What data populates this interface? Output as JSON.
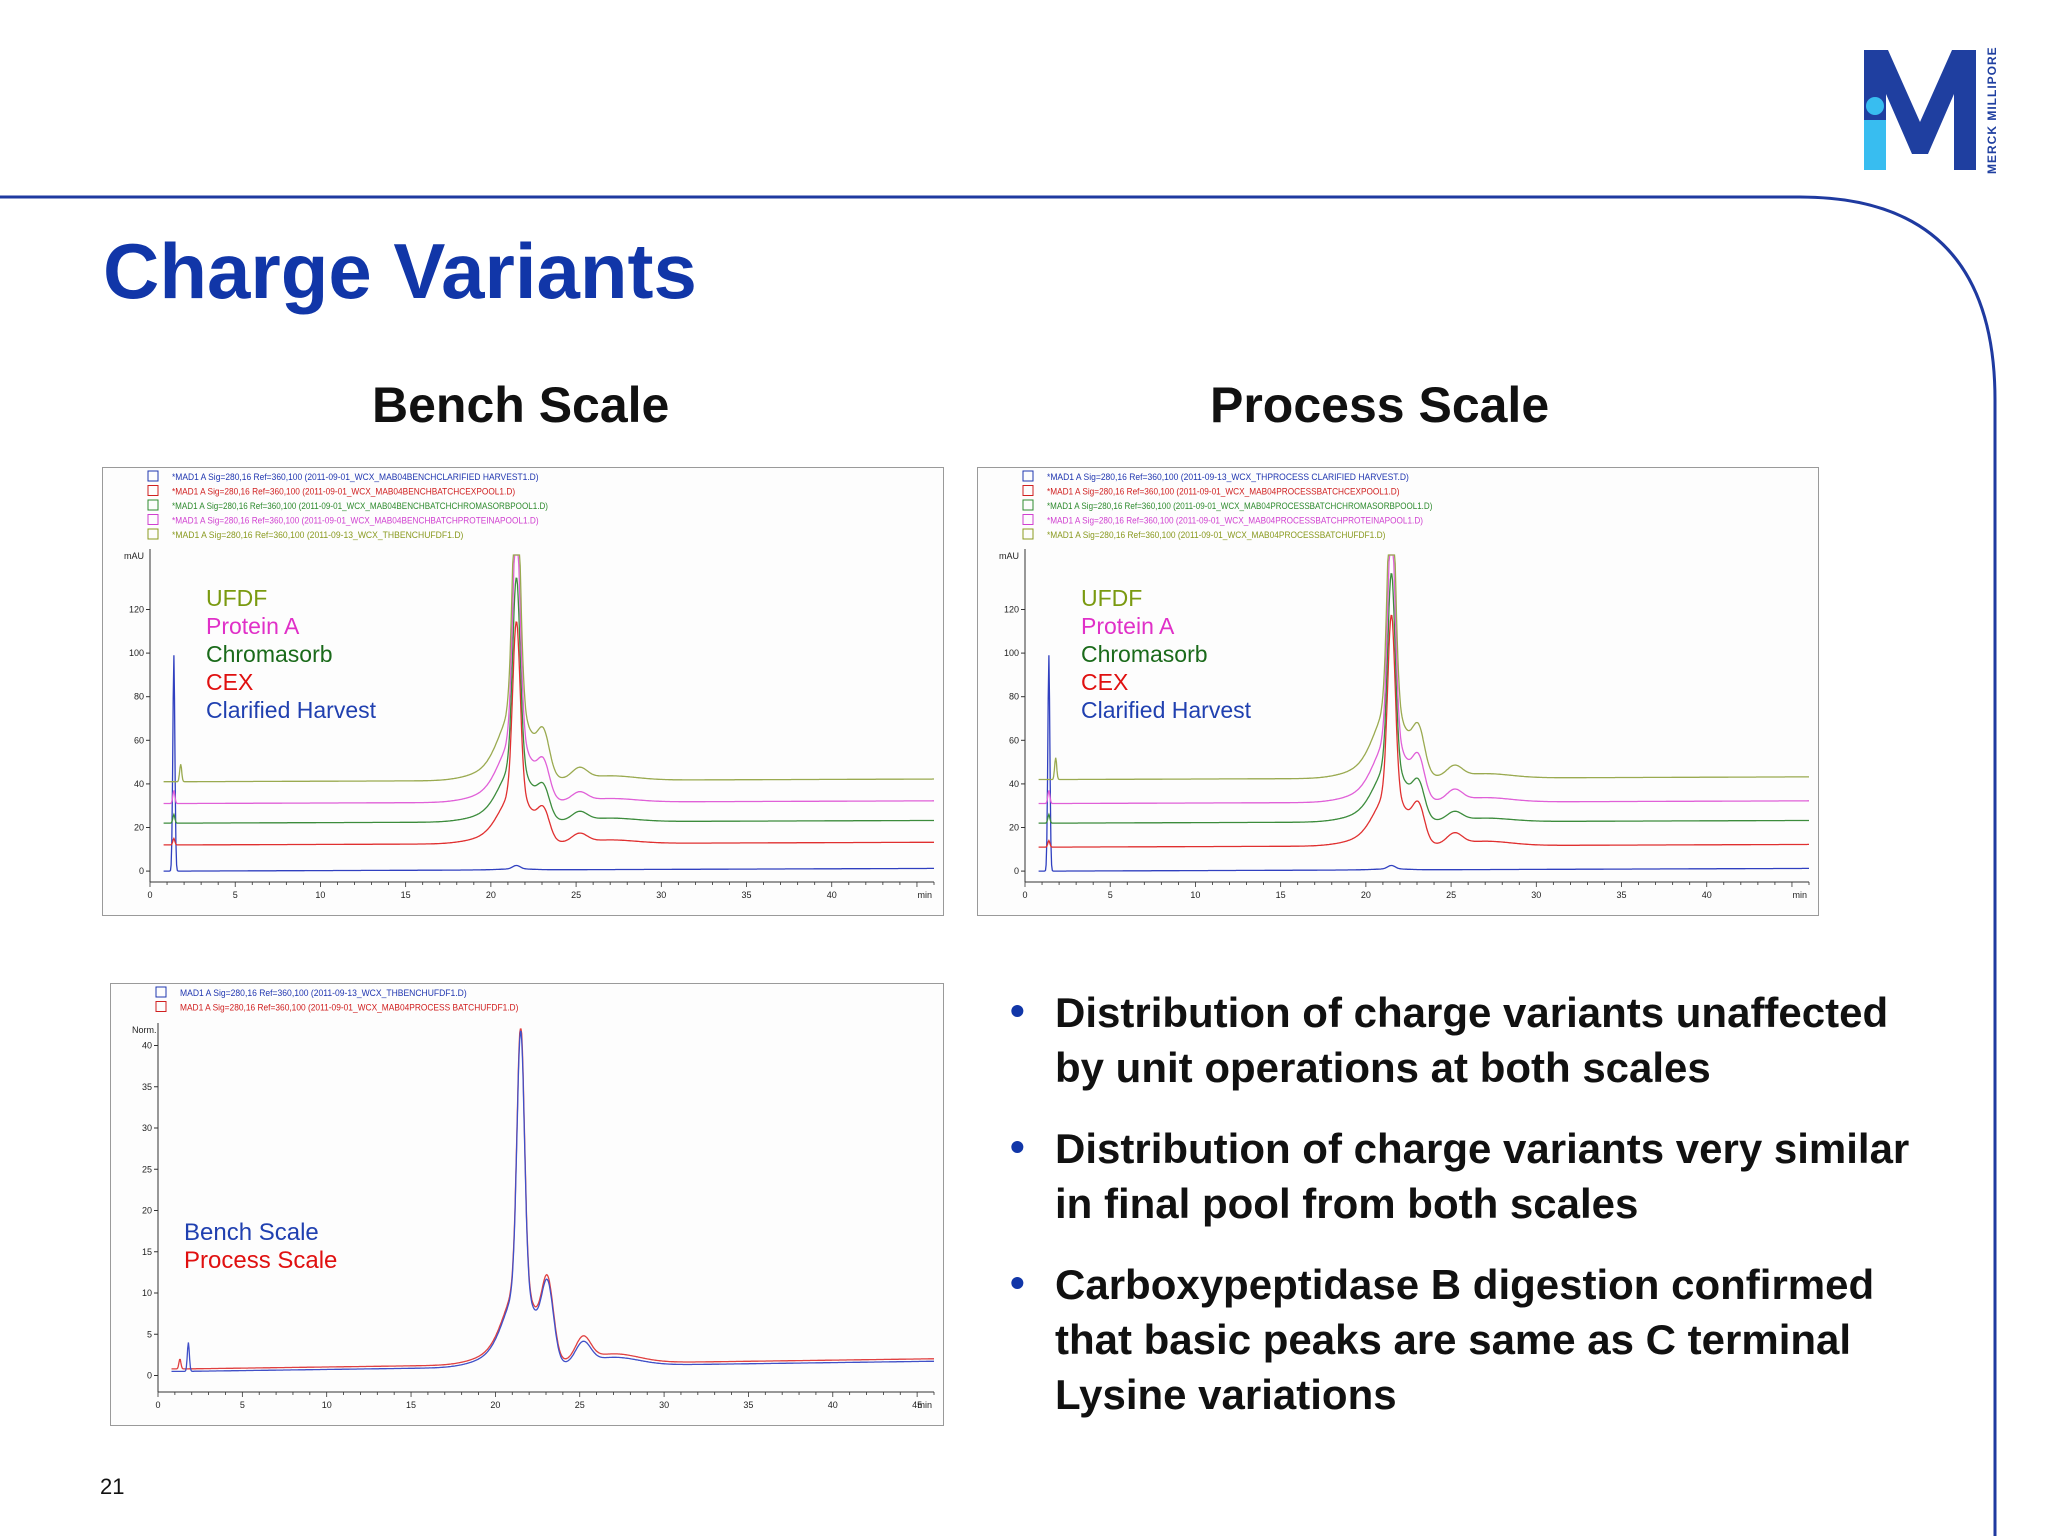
{
  "slide": {
    "title": "Charge Variants",
    "page_number": "21",
    "brand": "MERCK MILLIPORE",
    "colors": {
      "title": "#1136a8",
      "rule": "#1f3aa0",
      "logo_dark": "#1f3fa0",
      "logo_light": "#38bdf0"
    }
  },
  "bench": {
    "heading": "Bench Scale"
  },
  "process": {
    "heading": "Process Scale"
  },
  "bullets": [
    "Distribution of charge variants unaffected by unit operations at both scales",
    "Distribution of charge variants very similar in final pool from both scales",
    "Carboxypeptidase B digestion confirmed that basic peaks are same as C terminal Lysine variations"
  ],
  "chart_data": [
    {
      "type": "line",
      "panel": "bench",
      "ylabel": "mAU",
      "xunit": "min",
      "xlim": [
        0,
        46
      ],
      "ylim": [
        -5,
        145
      ],
      "xticks": [
        0,
        5,
        10,
        15,
        20,
        25,
        30,
        35,
        40
      ],
      "yticks": [
        0,
        20,
        40,
        60,
        80,
        100,
        120
      ],
      "file_legend": [
        {
          "text": "*MAD1 A Sig=280,16 Ref=360,100 (2011-09-01_WCX_MAB04BENCHCLARIFIED HARVEST1.D)",
          "color": "#2036b0"
        },
        {
          "text": "*MAD1 A Sig=280,16 Ref=360,100 (2011-09-01_WCX_MAB04BENCHBATCHCEXPOOL1.D)",
          "color": "#d02020"
        },
        {
          "text": "*MAD1 A Sig=280,16 Ref=360,100 (2011-09-01_WCX_MAB04BENCHBATCHCHROMASORBPOOL1.D)",
          "color": "#2e8b2e"
        },
        {
          "text": "*MAD1 A Sig=280,16 Ref=360,100 (2011-09-01_WCX_MAB04BENCHBATCHPROTEINAPOOL1.D)",
          "color": "#d040d0"
        },
        {
          "text": "*MAD1 A Sig=280,16 Ref=360,100 (2011-09-13_WCX_THBENCHUFDF1.D)",
          "color": "#8a9a20"
        }
      ],
      "series_labels": [
        {
          "name": "UFDF",
          "color": "#7a9a10"
        },
        {
          "name": "Protein A",
          "color": "#e030c8"
        },
        {
          "name": "Chromasorb",
          "color": "#1a6a1a"
        },
        {
          "name": "CEX",
          "color": "#e01010"
        },
        {
          "name": "Clarified Harvest",
          "color": "#2040b0"
        }
      ],
      "series": [
        {
          "name": "UFDF",
          "color": "#9aaa50",
          "baseline": 41,
          "spike_x": 1.8,
          "spike_h": 8,
          "peak_h": 140,
          "p2": 17,
          "p3": 5
        },
        {
          "name": "Protein A",
          "color": "#e060d8",
          "baseline": 31,
          "spike_x": 1.4,
          "spike_h": 6,
          "peak_h": 125,
          "p2": 14,
          "p3": 4
        },
        {
          "name": "Chromasorb",
          "color": "#3c8c3c",
          "baseline": 22,
          "spike_x": 1.4,
          "spike_h": 4,
          "peak_h": 110,
          "p2": 12,
          "p3": 4
        },
        {
          "name": "CEX",
          "color": "#e03030",
          "baseline": 12,
          "spike_x": 1.4,
          "spike_h": 3,
          "peak_h": 100,
          "p2": 12,
          "p3": 4
        },
        {
          "name": "Clarified Harvest",
          "color": "#3040c0",
          "baseline": 0,
          "spike_x": 1.4,
          "spike_h": 99,
          "peak_h": 2,
          "p2": 0,
          "p3": 0
        }
      ]
    },
    {
      "type": "line",
      "panel": "process",
      "ylabel": "mAU",
      "xunit": "min",
      "xlim": [
        0,
        46
      ],
      "ylim": [
        -5,
        145
      ],
      "xticks": [
        0,
        5,
        10,
        15,
        20,
        25,
        30,
        35,
        40
      ],
      "yticks": [
        0,
        20,
        40,
        60,
        80,
        100,
        120
      ],
      "file_legend": [
        {
          "text": "*MAD1 A Sig=280,16 Ref=360,100 (2011-09-13_WCX_THPROCESS CLARIFIED HARVEST.D)",
          "color": "#2036b0"
        },
        {
          "text": "*MAD1 A Sig=280,16 Ref=360,100 (2011-09-01_WCX_MAB04PROCESSBATCHCEXPOOL1.D)",
          "color": "#d02020"
        },
        {
          "text": "*MAD1 A Sig=280,16 Ref=360,100 (2011-09-01_WCX_MAB04PROCESSBATCHCHROMASORBPOOL1.D)",
          "color": "#2e8b2e"
        },
        {
          "text": "*MAD1 A Sig=280,16 Ref=360,100 (2011-09-01_WCX_MAB04PROCESSBATCHPROTEINAPOOL1.D)",
          "color": "#d040d0"
        },
        {
          "text": "*MAD1 A Sig=280,16 Ref=360,100 (2011-09-01_WCX_MAB04PROCESSBATCHUFDF1.D)",
          "color": "#8a9a20"
        }
      ],
      "series_labels": [
        {
          "name": "UFDF",
          "color": "#7a9a10"
        },
        {
          "name": "Protein A",
          "color": "#e030c8"
        },
        {
          "name": "Chromasorb",
          "color": "#1a6a1a"
        },
        {
          "name": "CEX",
          "color": "#e01010"
        },
        {
          "name": "Clarified Harvest",
          "color": "#2040b0"
        }
      ],
      "series": [
        {
          "name": "UFDF",
          "color": "#9aaa50",
          "baseline": 42,
          "spike_x": 1.8,
          "spike_h": 10,
          "peak_h": 140,
          "p2": 18,
          "p3": 5
        },
        {
          "name": "Protein A",
          "color": "#e060d8",
          "baseline": 31,
          "spike_x": 1.4,
          "spike_h": 6,
          "peak_h": 126,
          "p2": 16,
          "p3": 5
        },
        {
          "name": "Chromasorb",
          "color": "#3c8c3c",
          "baseline": 22,
          "spike_x": 1.4,
          "spike_h": 4,
          "peak_h": 112,
          "p2": 14,
          "p3": 4
        },
        {
          "name": "CEX",
          "color": "#e03030",
          "baseline": 11,
          "spike_x": 1.4,
          "spike_h": 3,
          "peak_h": 104,
          "p2": 15,
          "p3": 5
        },
        {
          "name": "Clarified Harvest",
          "color": "#3040c0",
          "baseline": 0,
          "spike_x": 1.4,
          "spike_h": 99,
          "peak_h": 2,
          "p2": 0,
          "p3": 0
        }
      ]
    },
    {
      "type": "line",
      "panel": "overlay",
      "ylabel": "Norm.",
      "xunit": "min",
      "xlim": [
        0,
        46
      ],
      "ylim": [
        -2,
        42
      ],
      "xticks": [
        0,
        5,
        10,
        15,
        20,
        25,
        30,
        35,
        40,
        45
      ],
      "yticks": [
        0,
        5,
        10,
        15,
        20,
        25,
        30,
        35,
        40
      ],
      "file_legend": [
        {
          "text": "MAD1 A Sig=280,16 Ref=360,100 (2011-09-13_WCX_THBENCHUFDF1.D)",
          "color": "#2036b0"
        },
        {
          "text": "MAD1 A Sig=280,16 Ref=360,100 (2011-09-01_WCX_MAB04PROCESS BATCHUFDF1.D)",
          "color": "#d02020"
        }
      ],
      "series_labels": [
        {
          "name": "Bench Scale",
          "color": "#2040b0"
        },
        {
          "name": "Process Scale",
          "color": "#e01010"
        }
      ],
      "series": [
        {
          "name": "Bench Scale",
          "color": "#4050c8",
          "baseline": 0.5,
          "spike_x": 1.8,
          "spike_h": 3.5,
          "peak_h": 40,
          "p2": 8.5,
          "p3": 2.5
        },
        {
          "name": "Process Scale",
          "color": "#e04040",
          "baseline": 0.8,
          "spike_x": 1.3,
          "spike_h": 1.2,
          "peak_h": 40.5,
          "p2": 8.7,
          "p3": 2.8
        }
      ]
    }
  ]
}
